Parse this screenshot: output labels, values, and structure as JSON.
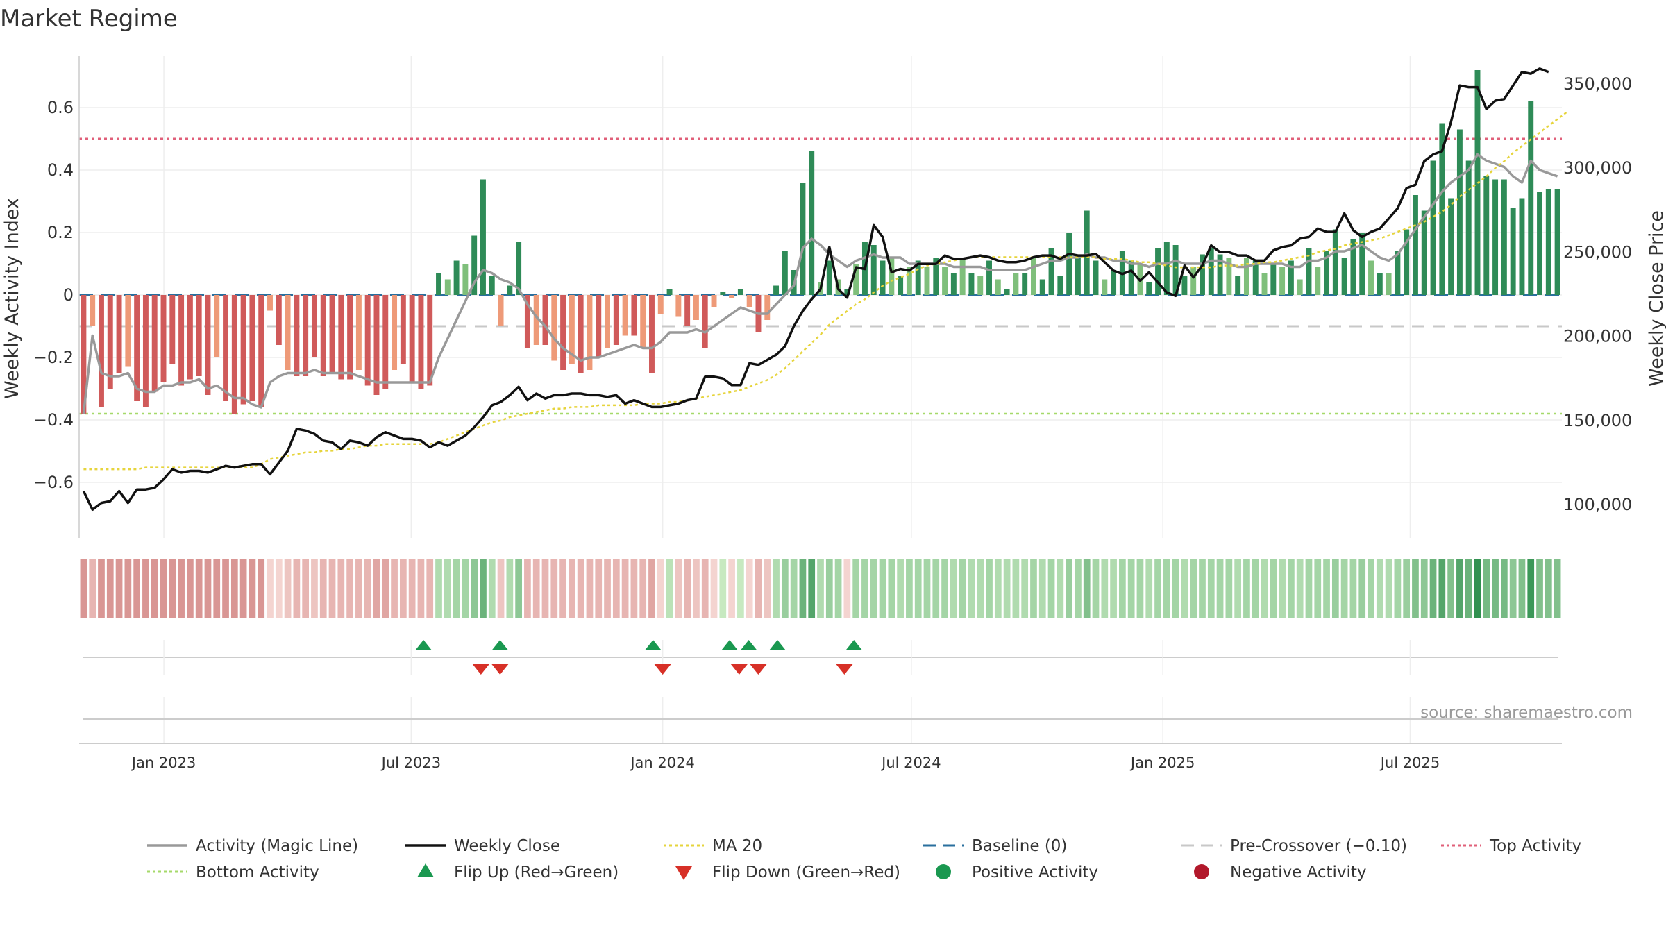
{
  "chart_data": {
    "type": "bar",
    "title": "Market Regime",
    "source": "source: sharemaestro.com",
    "ylabel": "Weekly Activity Index",
    "y2label": "Weekly Close Price",
    "ylim": [
      -0.77,
      0.77
    ],
    "y2lim": [
      60000,
      380000
    ],
    "xlim": [
      "2022-10-31",
      "2025-10-20"
    ],
    "yticks": [
      "−0.6",
      "−0.4",
      "−0.2",
      "0",
      "0.2",
      "0.4",
      "0.6"
    ],
    "ytick_values": [
      -0.6,
      -0.4,
      -0.2,
      0,
      0.2,
      0.4,
      0.6
    ],
    "y2ticks": [
      "100,000",
      "150,000",
      "200,000",
      "250,000",
      "300,000",
      "350,000"
    ],
    "y2tick_values": [
      100000,
      150000,
      200000,
      250000,
      300000,
      350000
    ],
    "xticks": [
      "Jan 2023",
      "Jul 2023",
      "Jan 2024",
      "Jul 2024",
      "Jan 2025",
      "Jul 2025"
    ],
    "xtick_dates": [
      "2023-01-01",
      "2023-07-01",
      "2024-01-01",
      "2024-07-01",
      "2025-01-01",
      "2025-07-01"
    ],
    "start_date": "2022-10-31",
    "reference_lines": {
      "top": 0.5,
      "bottom": -0.38,
      "baseline": 0,
      "pre_crossover": -0.1
    },
    "activity": [
      -0.38,
      -0.1,
      -0.36,
      -0.3,
      -0.25,
      -0.23,
      -0.34,
      -0.36,
      -0.31,
      -0.28,
      -0.22,
      -0.29,
      -0.27,
      -0.26,
      -0.32,
      -0.2,
      -0.34,
      -0.38,
      -0.35,
      -0.34,
      -0.36,
      -0.05,
      -0.16,
      -0.24,
      -0.26,
      -0.26,
      -0.2,
      -0.26,
      -0.25,
      -0.27,
      -0.27,
      -0.24,
      -0.29,
      -0.32,
      -0.3,
      -0.24,
      -0.22,
      -0.28,
      -0.3,
      -0.29,
      0.07,
      0.05,
      0.11,
      0.1,
      0.19,
      0.37,
      0.06,
      -0.1,
      0.03,
      0.17,
      -0.17,
      -0.16,
      -0.16,
      -0.21,
      -0.24,
      -0.22,
      -0.25,
      -0.24,
      -0.2,
      -0.17,
      -0.16,
      -0.13,
      -0.13,
      -0.17,
      -0.25,
      -0.06,
      0.02,
      -0.07,
      -0.1,
      -0.08,
      -0.17,
      -0.04,
      0.01,
      -0.01,
      0.02,
      -0.04,
      -0.12,
      -0.08,
      0.03,
      0.14,
      0.08,
      0.36,
      0.46,
      0.04,
      0.11,
      0.05,
      0.02,
      0.1,
      0.17,
      0.16,
      0.11,
      0.12,
      0.06,
      0.09,
      0.11,
      0.09,
      0.12,
      0.09,
      0.07,
      0.12,
      0.07,
      0.06,
      0.11,
      0.05,
      0.02,
      0.07,
      0.07,
      0.12,
      0.05,
      0.15,
      0.06,
      0.2,
      0.12,
      0.27,
      0.11,
      0.05,
      0.08,
      0.14,
      0.11,
      0.1,
      0.04,
      0.15,
      0.17,
      0.16,
      0.06,
      0.09,
      0.13,
      0.15,
      0.13,
      0.12,
      0.06,
      0.12,
      0.11,
      0.07,
      0.1,
      0.09,
      0.11,
      0.05,
      0.15,
      0.09,
      0.14,
      0.21,
      0.12,
      0.18,
      0.2,
      0.11,
      0.07,
      0.07,
      0.14,
      0.21,
      0.32,
      0.27,
      0.43,
      0.55,
      0.31,
      0.53,
      0.43,
      0.72,
      0.38,
      0.37,
      0.37,
      0.28,
      0.31,
      0.62,
      0.33,
      0.34,
      0.34
    ],
    "magic_line": [
      -0.38,
      -0.13,
      -0.25,
      -0.26,
      -0.26,
      -0.25,
      -0.3,
      -0.31,
      -0.31,
      -0.29,
      -0.29,
      -0.28,
      -0.28,
      -0.27,
      -0.3,
      -0.29,
      -0.31,
      -0.33,
      -0.33,
      -0.35,
      -0.36,
      -0.28,
      -0.26,
      -0.25,
      -0.25,
      -0.25,
      -0.24,
      -0.25,
      -0.25,
      -0.25,
      -0.25,
      -0.26,
      -0.27,
      -0.28,
      -0.28,
      -0.28,
      -0.28,
      -0.28,
      -0.28,
      -0.28,
      -0.2,
      -0.14,
      -0.08,
      -0.02,
      0.04,
      0.08,
      0.07,
      0.05,
      0.04,
      0.02,
      -0.03,
      -0.07,
      -0.1,
      -0.14,
      -0.17,
      -0.19,
      -0.21,
      -0.2,
      -0.2,
      -0.19,
      -0.18,
      -0.17,
      -0.16,
      -0.17,
      -0.17,
      -0.15,
      -0.12,
      -0.12,
      -0.12,
      -0.11,
      -0.12,
      -0.1,
      -0.08,
      -0.06,
      -0.04,
      -0.05,
      -0.06,
      -0.06,
      -0.03,
      0.0,
      0.03,
      0.15,
      0.18,
      0.16,
      0.13,
      0.11,
      0.09,
      0.11,
      0.12,
      0.13,
      0.12,
      0.12,
      0.12,
      0.1,
      0.1,
      0.1,
      0.1,
      0.1,
      0.09,
      0.09,
      0.09,
      0.09,
      0.08,
      0.08,
      0.08,
      0.08,
      0.08,
      0.09,
      0.1,
      0.11,
      0.11,
      0.12,
      0.12,
      0.13,
      0.12,
      0.12,
      0.11,
      0.11,
      0.1,
      0.1,
      0.09,
      0.1,
      0.1,
      0.11,
      0.1,
      0.1,
      0.1,
      0.11,
      0.11,
      0.1,
      0.09,
      0.09,
      0.1,
      0.1,
      0.1,
      0.1,
      0.09,
      0.09,
      0.11,
      0.11,
      0.12,
      0.14,
      0.14,
      0.15,
      0.16,
      0.14,
      0.12,
      0.11,
      0.13,
      0.17,
      0.21,
      0.25,
      0.29,
      0.33,
      0.36,
      0.38,
      0.4,
      0.45,
      0.43,
      0.42,
      0.41,
      0.38,
      0.36,
      0.43,
      0.4,
      0.39,
      0.38
    ],
    "weekly_close": [
      108000,
      97000,
      101000,
      102000,
      108000,
      101000,
      109000,
      109000,
      110000,
      115000,
      121000,
      119000,
      120000,
      120000,
      119000,
      121000,
      123000,
      122000,
      123000,
      124000,
      124000,
      118000,
      125000,
      132000,
      145000,
      144000,
      142000,
      138000,
      137000,
      133000,
      138000,
      137000,
      135000,
      140000,
      143000,
      141000,
      139000,
      139000,
      138000,
      134000,
      137000,
      135000,
      138000,
      141000,
      146000,
      152000,
      159000,
      161000,
      165000,
      170000,
      162000,
      166000,
      163000,
      165000,
      165000,
      166000,
      166000,
      165000,
      165000,
      164000,
      165000,
      160000,
      162000,
      160000,
      158000,
      158000,
      159000,
      160000,
      162000,
      163000,
      176000,
      176000,
      175000,
      171000,
      171000,
      184000,
      183000,
      186000,
      189000,
      194000,
      206000,
      215000,
      222000,
      228000,
      253000,
      228000,
      223000,
      241000,
      240000,
      266000,
      259000,
      238000,
      240000,
      239000,
      243000,
      243000,
      243000,
      248000,
      246000,
      246000,
      247000,
      248000,
      247000,
      245000,
      244000,
      244000,
      245000,
      247000,
      248000,
      248000,
      246000,
      249000,
      248000,
      248000,
      249000,
      244000,
      239000,
      237000,
      239000,
      233000,
      238000,
      232000,
      226000,
      224000,
      242000,
      235000,
      242000,
      254000,
      250000,
      250000,
      248000,
      248000,
      245000,
      245000,
      251000,
      253000,
      254000,
      258000,
      259000,
      264000,
      262000,
      262000,
      273000,
      263000,
      259000,
      262000,
      264000,
      270000,
      276000,
      288000,
      290000,
      304000,
      308000,
      310000,
      327000,
      349000,
      348000,
      348000,
      335000,
      340000,
      341000,
      349000,
      357000,
      356000,
      359000,
      357000
    ],
    "ma20": [
      121000,
      121000,
      121000,
      121000,
      121000,
      121000,
      121000,
      122000,
      122000,
      122000,
      122000,
      122000,
      122000,
      122000,
      122000,
      122000,
      122000,
      122000,
      122000,
      122000,
      124000,
      127000,
      128000,
      129000,
      130000,
      131000,
      131000,
      132000,
      132000,
      133000,
      133000,
      134000,
      135000,
      135000,
      136000,
      136000,
      136000,
      136000,
      136000,
      136000,
      137000,
      139000,
      141000,
      143000,
      145000,
      147000,
      149000,
      150000,
      152000,
      153000,
      154000,
      155000,
      156000,
      157000,
      157000,
      158000,
      158000,
      158000,
      159000,
      159000,
      159000,
      159000,
      159000,
      160000,
      160000,
      160000,
      161000,
      161000,
      162000,
      163000,
      164000,
      165000,
      166000,
      167000,
      168000,
      170000,
      172000,
      174000,
      177000,
      181000,
      186000,
      191000,
      196000,
      201000,
      207000,
      211000,
      215000,
      219000,
      222000,
      226000,
      230000,
      233000,
      235000,
      237000,
      240000,
      242000,
      243000,
      244000,
      245000,
      246000,
      247000,
      247000,
      247000,
      247000,
      247000,
      247000,
      247000,
      247000,
      247000,
      247000,
      247000,
      247000,
      247000,
      247000,
      247000,
      246000,
      246000,
      246000,
      245000,
      244000,
      244000,
      243000,
      242000,
      241000,
      241000,
      241000,
      241000,
      241000,
      242000,
      242000,
      242000,
      243000,
      243000,
      244000,
      244000,
      245000,
      246000,
      247000,
      248000,
      250000,
      251000,
      252000,
      254000,
      255000,
      256000,
      257000,
      258000,
      260000,
      262000,
      264000,
      266000,
      268000,
      271000,
      274000,
      278000,
      283000,
      287000,
      291000,
      295000,
      300000,
      304000,
      309000,
      313000,
      317000,
      321000,
      325000,
      329000,
      333000
    ],
    "heat_strip": [
      0.35,
      0.25,
      0.35,
      0.35,
      0.35,
      0.35,
      0.35,
      0.35,
      0.35,
      0.35,
      0.35,
      0.35,
      0.35,
      0.35,
      0.35,
      0.35,
      0.35,
      0.35,
      0.35,
      0.35,
      0.35,
      0.15,
      0.15,
      0.2,
      0.25,
      0.25,
      0.2,
      0.25,
      0.25,
      0.25,
      0.25,
      0.25,
      0.25,
      0.3,
      0.3,
      0.25,
      0.25,
      0.25,
      0.25,
      0.25,
      -0.3,
      -0.3,
      -0.35,
      -0.35,
      -0.45,
      -0.6,
      -0.3,
      0.2,
      -0.3,
      -0.45,
      0.25,
      0.25,
      0.25,
      0.25,
      0.25,
      0.25,
      0.25,
      0.25,
      0.25,
      0.25,
      0.25,
      0.25,
      0.25,
      0.25,
      0.3,
      0.15,
      -0.25,
      0.2,
      0.25,
      0.2,
      0.25,
      0.15,
      -0.2,
      0.15,
      -0.2,
      0.15,
      0.25,
      0.2,
      -0.3,
      -0.4,
      -0.35,
      -0.6,
      -0.7,
      -0.3,
      -0.4,
      -0.35,
      0.15,
      -0.35,
      -0.35,
      -0.35,
      -0.35,
      -0.35,
      -0.3,
      -0.35,
      -0.35,
      -0.35,
      -0.35,
      -0.35,
      -0.3,
      -0.35,
      -0.3,
      -0.3,
      -0.35,
      -0.3,
      -0.3,
      -0.3,
      -0.3,
      -0.35,
      -0.3,
      -0.35,
      -0.3,
      -0.4,
      -0.35,
      -0.5,
      -0.35,
      -0.3,
      -0.3,
      -0.35,
      -0.35,
      -0.35,
      -0.3,
      -0.35,
      -0.35,
      -0.35,
      -0.3,
      -0.35,
      -0.35,
      -0.35,
      -0.35,
      -0.35,
      -0.3,
      -0.35,
      -0.35,
      -0.3,
      -0.35,
      -0.3,
      -0.35,
      -0.3,
      -0.35,
      -0.35,
      -0.35,
      -0.4,
      -0.35,
      -0.35,
      -0.4,
      -0.35,
      -0.3,
      -0.3,
      -0.35,
      -0.4,
      -0.5,
      -0.45,
      -0.6,
      -0.7,
      -0.5,
      -0.7,
      -0.6,
      -0.85,
      -0.55,
      -0.55,
      -0.55,
      -0.45,
      -0.5,
      -0.8,
      -0.5,
      -0.5,
      -0.5
    ],
    "flip_up_dates": [
      "2023-07-10",
      "2023-09-04",
      "2023-12-25",
      "2024-02-19",
      "2024-03-04",
      "2024-03-25",
      "2024-05-20"
    ],
    "flip_down_dates": [
      "2023-08-21",
      "2023-09-04",
      "2024-01-01",
      "2024-02-26",
      "2024-03-11",
      "2024-05-13"
    ],
    "legend": [
      {
        "label": "Activity (Magic Line)",
        "style": "line",
        "color": "#999999"
      },
      {
        "label": "Weekly Close",
        "style": "line",
        "color": "#111111"
      },
      {
        "label": "MA 20",
        "style": "dotted",
        "color": "#e6d43c"
      },
      {
        "label": "Baseline (0)",
        "style": "dashed",
        "color": "#2a6f9e"
      },
      {
        "label": "Pre-Crossover (−0.10)",
        "style": "dashed",
        "color": "#c8c8c8"
      },
      {
        "label": "Top Activity",
        "style": "dotted",
        "color": "#e0607a"
      },
      {
        "label": "Bottom Activity",
        "style": "dotted",
        "color": "#a6d96a"
      },
      {
        "label": "Flip Up (Red→Green)",
        "style": "triangle-up",
        "color": "#1a9850"
      },
      {
        "label": "Flip Down (Green→Red)",
        "style": "triangle-down",
        "color": "#d73027"
      },
      {
        "label": "Positive Activity",
        "style": "dot",
        "color": "#1a9850"
      },
      {
        "label": "Negative Activity",
        "style": "dot",
        "color": "#b2182b"
      }
    ],
    "colors": {
      "pos_dark": "#2e8b57",
      "pos_light": "#7fbf7b",
      "neg_dark": "#d05a5a",
      "neg_light": "#ee9a78",
      "top_line": "#e0607a",
      "bottom_line": "#a6d96a",
      "pre_crossover": "#c8c8c8",
      "baseline": "#2a6f9e",
      "magic_line": "#999999",
      "close": "#111111",
      "ma20": "#e6d43c",
      "grid": "#eeeeee"
    }
  }
}
